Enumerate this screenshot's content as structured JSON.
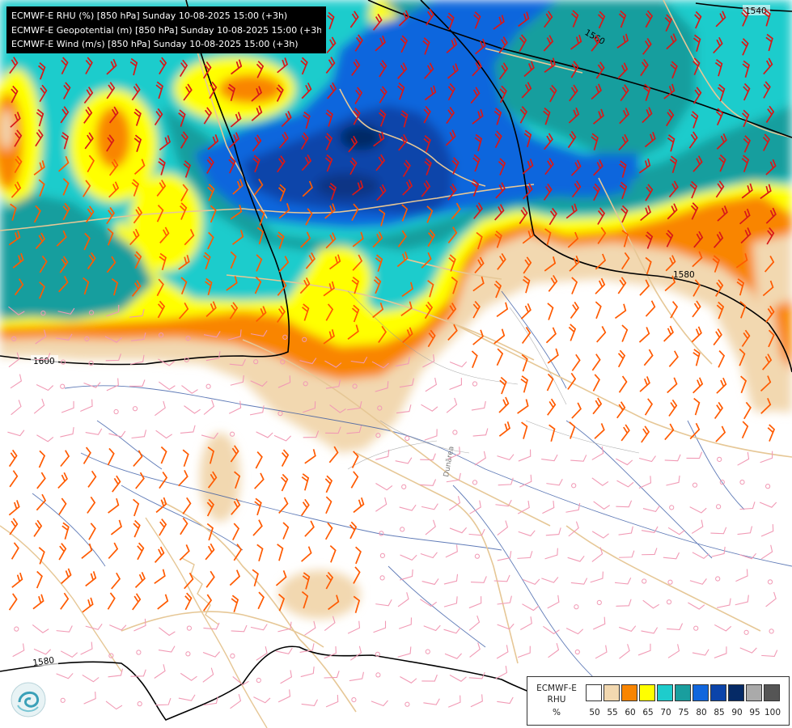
{
  "header": {
    "lines": [
      "ECMWF-E RHU (%) [850 hPa] Sunday 10-08-2025 15:00 (+3h)",
      "ECMWF-E Geopotential (m) [850 hPa] Sunday 10-08-2025 15:00 (+3h)",
      "ECMWF-E Wind (m/s) [850 hPa] Sunday 10-08-2025 15:00 (+3h)"
    ]
  },
  "legend": {
    "title_lines": [
      "ECMWF-E",
      "RHU",
      "%"
    ],
    "ticks": [
      "50",
      "55",
      "60",
      "65",
      "70",
      "75",
      "80",
      "85",
      "90",
      "95",
      "100"
    ],
    "colors": [
      "#ffffff",
      "#f2d8b0",
      "#f98500",
      "#ffff00",
      "#1ecccc",
      "#199e9e",
      "#1166dd",
      "#0b44aa",
      "#052a66",
      "#aaaaaa",
      "#555555"
    ]
  },
  "map": {
    "contour_labels": [
      "1540",
      "1560",
      "1580",
      "1600",
      "1580"
    ],
    "river_label": "Dunărea",
    "colors": {
      "border": "#e6c796",
      "river": "#2b4f9f",
      "contour": "#000000",
      "barb_moist": "#d81818",
      "barb_mid": "#ff5a00",
      "barb_dry": "#f19ab5"
    }
  }
}
